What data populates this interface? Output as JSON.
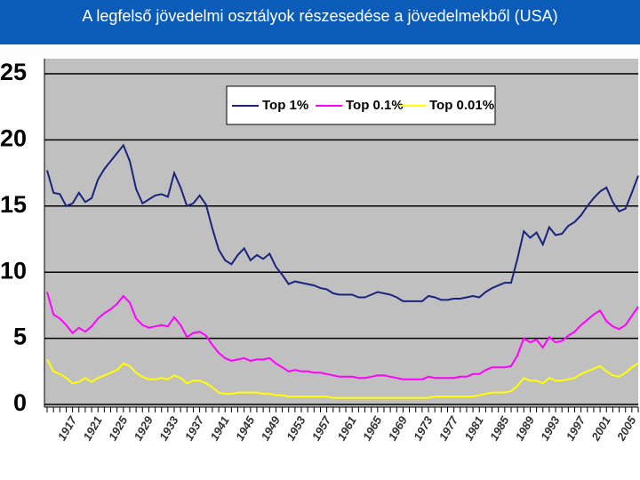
{
  "chart_data": {
    "type": "line",
    "title": "A legfelső jövedelmi osztályok részesedése a jövedelmekből (USA)",
    "categories": [
      null,
      null,
      null,
      null,
      "1917",
      null,
      null,
      null,
      "1921",
      null,
      null,
      null,
      "1925",
      null,
      null,
      null,
      "1929",
      null,
      null,
      null,
      "1933",
      null,
      null,
      null,
      "1937",
      null,
      null,
      null,
      "1941",
      null,
      null,
      null,
      "1945",
      null,
      null,
      null,
      "1949",
      null,
      null,
      null,
      "1953",
      null,
      null,
      null,
      "1957",
      null,
      null,
      null,
      "1961",
      null,
      null,
      null,
      "1965",
      null,
      null,
      null,
      "1969",
      null,
      null,
      null,
      "1973",
      null,
      null,
      null,
      "1977",
      null,
      null,
      null,
      "1981",
      null,
      null,
      null,
      "1985",
      null,
      null,
      null,
      "1989",
      null,
      null,
      null,
      "1993",
      null,
      null,
      null,
      "1997",
      null,
      null,
      null,
      "2001",
      null,
      null,
      null,
      "2005",
      null
    ],
    "series": [
      {
        "name": "Top 1%",
        "color": "#1a237e",
        "values": [
          17.7,
          16.0,
          15.9,
          15.0,
          15.2,
          16.0,
          15.3,
          15.6,
          17.0,
          17.8,
          18.4,
          19.0,
          19.6,
          18.4,
          16.3,
          15.2,
          15.5,
          15.8,
          15.9,
          15.7,
          17.5,
          16.4,
          15.0,
          15.2,
          15.8,
          15.1,
          13.3,
          11.7,
          10.9,
          10.6,
          11.3,
          11.8,
          10.9,
          11.3,
          11.0,
          11.4,
          10.4,
          9.8,
          9.1,
          9.3,
          9.2,
          9.1,
          9.0,
          8.8,
          8.7,
          8.4,
          8.3,
          8.3,
          8.3,
          8.1,
          8.1,
          8.3,
          8.5,
          8.4,
          8.3,
          8.1,
          7.8,
          7.8,
          7.8,
          7.8,
          8.2,
          8.1,
          7.9,
          7.9,
          8.0,
          8.0,
          8.1,
          8.2,
          8.1,
          8.5,
          8.8,
          9.0,
          9.2,
          9.2,
          11.0,
          13.1,
          12.6,
          13.0,
          12.1,
          13.4,
          12.8,
          12.9,
          13.5,
          13.8,
          14.3,
          15.0,
          15.6,
          16.1,
          16.4,
          15.3,
          14.6,
          14.8,
          16.0,
          17.3
        ]
      },
      {
        "name": "Top 0.1%",
        "color": "#ff00ff",
        "values": [
          8.5,
          6.8,
          6.5,
          6.0,
          5.4,
          5.8,
          5.5,
          5.9,
          6.5,
          6.9,
          7.2,
          7.6,
          8.2,
          7.7,
          6.5,
          6.0,
          5.8,
          5.9,
          6.0,
          5.9,
          6.6,
          6.0,
          5.1,
          5.4,
          5.5,
          5.2,
          4.5,
          3.9,
          3.5,
          3.3,
          3.4,
          3.5,
          3.3,
          3.4,
          3.4,
          3.5,
          3.1,
          2.8,
          2.5,
          2.6,
          2.5,
          2.5,
          2.4,
          2.4,
          2.3,
          2.2,
          2.1,
          2.1,
          2.1,
          2.0,
          2.0,
          2.1,
          2.2,
          2.2,
          2.1,
          2.0,
          1.9,
          1.9,
          1.9,
          1.9,
          2.1,
          2.0,
          2.0,
          2.0,
          2.0,
          2.1,
          2.1,
          2.3,
          2.3,
          2.6,
          2.8,
          2.8,
          2.8,
          2.9,
          3.7,
          5.0,
          4.7,
          4.9,
          4.3,
          5.1,
          4.7,
          4.8,
          5.2,
          5.5,
          6.0,
          6.4,
          6.8,
          7.1,
          6.3,
          5.9,
          5.7,
          6.0,
          6.7,
          7.4
        ]
      },
      {
        "name": "Top 0.01%",
        "color": "#ffff00",
        "values": [
          3.4,
          2.5,
          2.3,
          2.0,
          1.6,
          1.7,
          2.0,
          1.7,
          2.0,
          2.2,
          2.4,
          2.6,
          3.1,
          2.9,
          2.4,
          2.1,
          1.9,
          1.9,
          2.0,
          1.9,
          2.2,
          2.0,
          1.6,
          1.8,
          1.8,
          1.6,
          1.3,
          0.9,
          0.8,
          0.8,
          0.9,
          0.9,
          0.9,
          0.9,
          0.8,
          0.8,
          0.7,
          0.7,
          0.6,
          0.6,
          0.6,
          0.6,
          0.6,
          0.6,
          0.6,
          0.5,
          0.5,
          0.5,
          0.5,
          0.5,
          0.5,
          0.5,
          0.5,
          0.5,
          0.5,
          0.5,
          0.5,
          0.5,
          0.5,
          0.5,
          0.5,
          0.6,
          0.6,
          0.6,
          0.6,
          0.6,
          0.6,
          0.6,
          0.7,
          0.8,
          0.9,
          0.9,
          0.9,
          1.0,
          1.4,
          2.0,
          1.8,
          1.8,
          1.6,
          2.0,
          1.8,
          1.8,
          1.9,
          2.0,
          2.3,
          2.5,
          2.7,
          2.9,
          2.5,
          2.2,
          2.1,
          2.4,
          2.8,
          3.1
        ]
      }
    ],
    "ylim": [
      0,
      25
    ],
    "yticks": [
      0,
      5,
      10,
      15,
      20,
      25
    ],
    "grid": true,
    "legend_position": "top"
  }
}
